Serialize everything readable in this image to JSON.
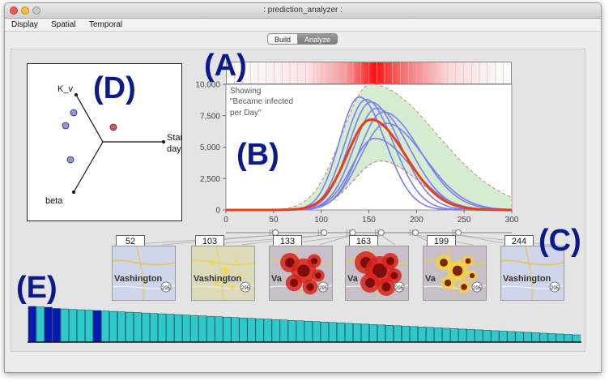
{
  "window": {
    "title": ": prediction_analyzer :",
    "traffic_lights": [
      "close",
      "minimize",
      "zoom"
    ]
  },
  "menu": {
    "items": [
      "Display",
      "Spatial",
      "Temporal"
    ]
  },
  "tabs": {
    "items": [
      "Build",
      "Analyze"
    ],
    "selected": "Analyze"
  },
  "annotations": {
    "a": "(A)",
    "b": "(B)",
    "c": "(C)",
    "d": "(D)",
    "e": "(E)"
  },
  "radar": {
    "axes": [
      "K_v",
      "Start day",
      "beta"
    ],
    "points": [
      {
        "color": "#8f95e6"
      },
      {
        "color": "#8f95e6"
      },
      {
        "color": "#8f95e6"
      },
      {
        "color": "#d9566a"
      }
    ]
  },
  "time_chart": {
    "y_ticks": [
      "10,000",
      "7,500",
      "5,000",
      "2,500",
      "0"
    ],
    "x_ticks": [
      "0",
      "50",
      "100",
      "150",
      "200",
      "250",
      "300"
    ],
    "showing_label": "Showing \"Became infected per Day\"",
    "showing_lines": [
      "Showing",
      "\"Became infected",
      " per Day\""
    ],
    "colors": {
      "mean": "#ee3b16",
      "runs": "#7c7ff0",
      "band": "#d4ecd0"
    }
  },
  "snapshots": [
    {
      "day": "52",
      "place": "Vashington",
      "route": "295"
    },
    {
      "day": "103",
      "place": "Vashington",
      "route": "295"
    },
    {
      "day": "133",
      "place": "Va",
      "route": "295"
    },
    {
      "day": "163",
      "place": "Va",
      "route": "295"
    },
    {
      "day": "199",
      "place": "Va",
      "route": "295"
    },
    {
      "day": "244",
      "place": "Vashington",
      "route": "295"
    }
  ],
  "ensemble": {
    "colors": {
      "selected": "#0a18b0",
      "other": "#2fc9c9"
    }
  }
}
